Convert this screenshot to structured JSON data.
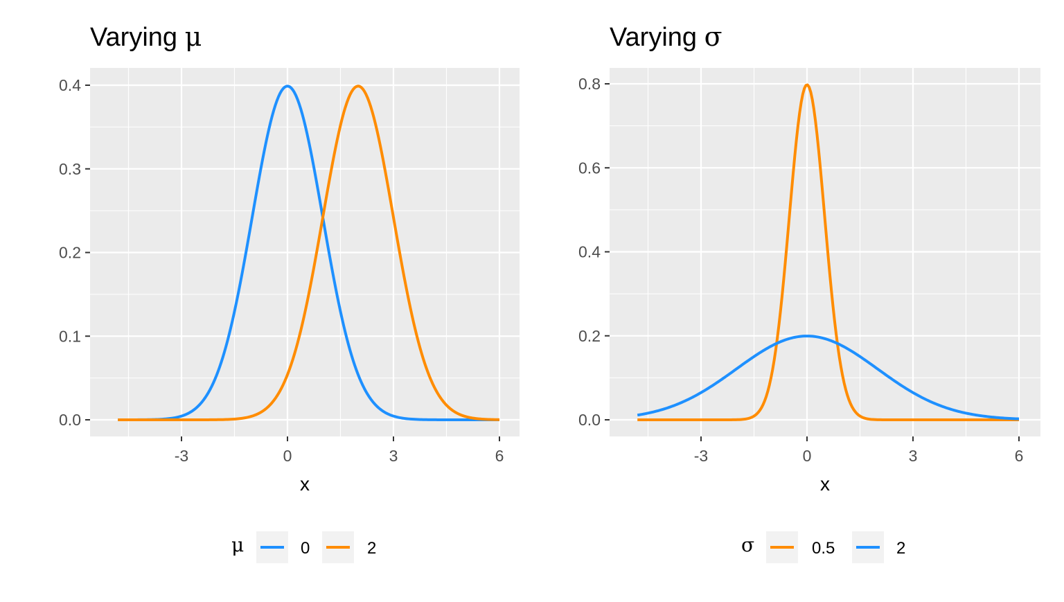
{
  "chart_data": [
    {
      "type": "line",
      "title_prefix": "Varying ",
      "title_symbol": "μ",
      "xlabel": "x",
      "ylabel": "",
      "xlim": [
        -5,
        6
      ],
      "ylim": [
        0,
        0.4
      ],
      "x_ticks": [
        -3,
        0,
        3,
        6
      ],
      "x_tick_labels": [
        "-3",
        "0",
        "3",
        "6"
      ],
      "y_ticks": [
        0,
        0.1,
        0.2,
        0.3,
        0.4
      ],
      "y_tick_labels": [
        "0.0",
        "0.1",
        "0.2",
        "0.3",
        "0.4"
      ],
      "grid": true,
      "legend_position": "bottom",
      "legend_title": "μ",
      "series": [
        {
          "name": "0",
          "color": "#1E90FF",
          "mean": 0,
          "sd": 1
        },
        {
          "name": "2",
          "color": "#FF8C00",
          "mean": 2,
          "sd": 1
        }
      ]
    },
    {
      "type": "line",
      "title_prefix": "Varying ",
      "title_symbol": "σ",
      "xlabel": "x",
      "ylabel": "",
      "xlim": [
        -5,
        6
      ],
      "ylim": [
        0,
        0.8
      ],
      "x_ticks": [
        -3,
        0,
        3,
        6
      ],
      "x_tick_labels": [
        "-3",
        "0",
        "3",
        "6"
      ],
      "y_ticks": [
        0,
        0.2,
        0.4,
        0.6,
        0.8
      ],
      "y_tick_labels": [
        "0.0",
        "0.2",
        "0.4",
        "0.6",
        "0.8"
      ],
      "grid": true,
      "legend_position": "bottom",
      "legend_title": "σ",
      "series": [
        {
          "name": "0.5",
          "color": "#FF8C00",
          "mean": 0,
          "sd": 0.5
        },
        {
          "name": "2",
          "color": "#1E90FF",
          "mean": 0,
          "sd": 2
        }
      ]
    }
  ]
}
